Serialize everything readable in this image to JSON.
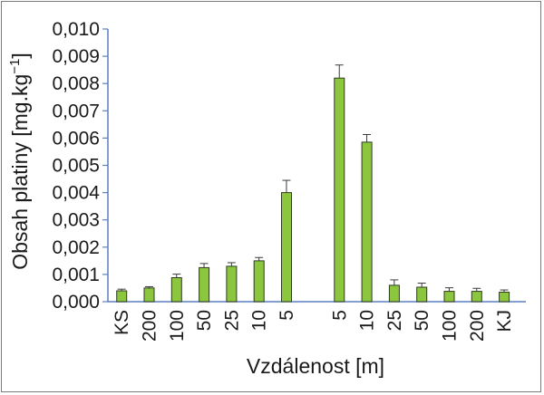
{
  "chart_data": {
    "type": "bar",
    "xlabel": "Vzdálenost [m]",
    "ylabel_main": "Obsah platiny [mg.kg",
    "ylabel_sup": "−1",
    "ylabel_close": "]",
    "ylim": [
      0,
      0.01
    ],
    "y_ticks": [
      "0,000",
      "0,001",
      "0,002",
      "0,003",
      "0,004",
      "0,005",
      "0,006",
      "0,007",
      "0,008",
      "0,009",
      "0,010"
    ],
    "y_tick_values": [
      0,
      0.001,
      0.002,
      0.003,
      0.004,
      0.005,
      0.006,
      0.007,
      0.008,
      0.009,
      0.01
    ],
    "grid": false,
    "legend": "none",
    "bar_color": "#8cc63f",
    "bar_edge_color": "#2f3a1f",
    "groups": [
      {
        "categories": [
          "KS",
          "200",
          "100",
          "50",
          "25",
          "10",
          "5"
        ],
        "values": [
          0.0004,
          0.0005,
          0.00088,
          0.00125,
          0.0013,
          0.0015,
          0.004
        ],
        "errors": [
          6e-05,
          5e-05,
          0.00013,
          0.00015,
          0.00013,
          0.00012,
          0.00045
        ]
      },
      {
        "categories": [
          "5",
          "10",
          "25",
          "50",
          "100",
          "200",
          "KJ"
        ],
        "values": [
          0.0082,
          0.00585,
          0.0006,
          0.00053,
          0.00038,
          0.00038,
          0.00035
        ],
        "errors": [
          0.00048,
          0.00028,
          0.0002,
          0.00015,
          0.00013,
          0.00011,
          8e-05
        ]
      }
    ]
  }
}
